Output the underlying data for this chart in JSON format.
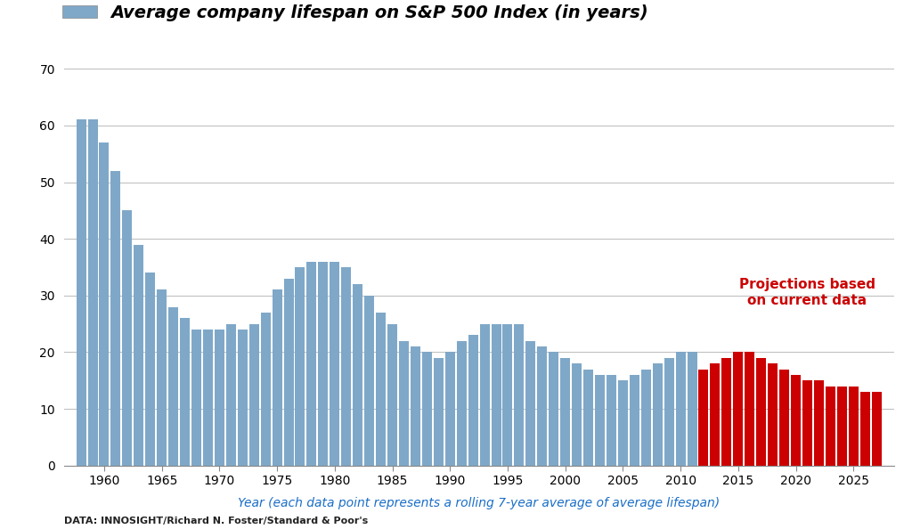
{
  "title": "Average company lifespan on S&P 500 Index (in years)",
  "xlabel": "Year (each data point represents a rolling 7-year average of average lifespan)",
  "data_note": "DATA: INNOSIGHT/Richard N. Foster/Standard & Poor's",
  "annotation": "Projections based\non current data",
  "annotation_color": "#cc0000",
  "bar_color_blue": "#7fa8c8",
  "bar_color_red": "#cc0000",
  "legend_color": "#7fa8c8",
  "xlabel_color": "#1a6ec8",
  "ylim": [
    0,
    70
  ],
  "yticks": [
    0,
    10,
    20,
    30,
    40,
    50,
    60,
    70
  ],
  "years": [
    1958,
    1959,
    1960,
    1961,
    1962,
    1963,
    1964,
    1965,
    1966,
    1967,
    1968,
    1969,
    1970,
    1971,
    1972,
    1973,
    1974,
    1975,
    1976,
    1977,
    1978,
    1979,
    1980,
    1981,
    1982,
    1983,
    1984,
    1985,
    1986,
    1987,
    1988,
    1989,
    1990,
    1991,
    1992,
    1993,
    1994,
    1995,
    1996,
    1997,
    1998,
    1999,
    2000,
    2001,
    2002,
    2003,
    2004,
    2005,
    2006,
    2007,
    2008,
    2009,
    2010,
    2011,
    2012,
    2013,
    2014,
    2015,
    2016,
    2017,
    2018,
    2019,
    2020,
    2021,
    2022,
    2023,
    2024,
    2025,
    2026,
    2027
  ],
  "values": [
    61,
    61,
    57,
    52,
    45,
    39,
    34,
    31,
    28,
    26,
    24,
    24,
    24,
    25,
    24,
    25,
    27,
    31,
    33,
    35,
    36,
    36,
    36,
    35,
    32,
    30,
    27,
    25,
    22,
    21,
    20,
    19,
    20,
    22,
    23,
    25,
    25,
    25,
    25,
    22,
    21,
    20,
    19,
    18,
    17,
    16,
    16,
    15,
    16,
    17,
    18,
    19,
    20,
    20,
    17,
    18,
    19,
    20,
    20,
    19,
    18,
    17,
    16,
    15,
    15,
    14,
    14,
    14,
    13,
    13
  ],
  "projection_start_year": 2012,
  "xtick_years": [
    1960,
    1965,
    1970,
    1975,
    1980,
    1985,
    1990,
    1995,
    2000,
    2005,
    2010,
    2015,
    2020,
    2025
  ],
  "background_color": "#ffffff",
  "grid_color": "#bbbbbb"
}
